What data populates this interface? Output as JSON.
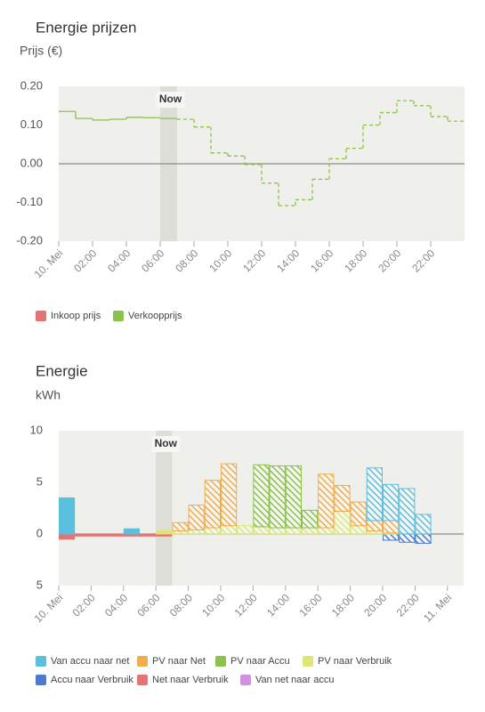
{
  "chart_data": [
    {
      "type": "step",
      "title": "Energie prijzen",
      "unit_label": "Prijs (€)",
      "x": [
        0,
        1,
        2,
        3,
        4,
        5,
        6,
        7,
        8,
        9,
        10,
        11,
        12,
        13,
        14,
        15,
        16,
        17,
        18,
        19,
        20,
        21,
        22,
        23
      ],
      "xlim": [
        0,
        24
      ],
      "xticks": [
        {
          "value": 0,
          "label": "10. Mei"
        },
        {
          "value": 2,
          "label": "02:00"
        },
        {
          "value": 4,
          "label": "04:00"
        },
        {
          "value": 6,
          "label": "06:00"
        },
        {
          "value": 8,
          "label": "08:00"
        },
        {
          "value": 10,
          "label": "10:00"
        },
        {
          "value": 12,
          "label": "12:00"
        },
        {
          "value": 14,
          "label": "14:00"
        },
        {
          "value": 16,
          "label": "16:00"
        },
        {
          "value": 18,
          "label": "18:00"
        },
        {
          "value": 20,
          "label": "20:00"
        },
        {
          "value": 22,
          "label": "22:00"
        }
      ],
      "ylim": [
        -0.2,
        0.2
      ],
      "yticks": [
        {
          "value": 0.2,
          "label": "0.20"
        },
        {
          "value": 0.1,
          "label": "0.10"
        },
        {
          "value": 0,
          "label": "0.00"
        },
        {
          "value": -0.1,
          "label": "-0.10"
        },
        {
          "value": -0.2,
          "label": "-0.20"
        }
      ],
      "now": {
        "label": "Now",
        "x": [
          6,
          7
        ]
      },
      "series": [
        {
          "name": "Inkoop prijs",
          "color": "#e57373",
          "values": [
            null,
            null,
            null,
            null,
            null,
            null,
            null,
            null,
            null,
            null,
            null,
            null,
            null,
            null,
            null,
            null,
            null,
            null,
            null,
            null,
            null,
            null,
            null,
            null
          ]
        },
        {
          "name": "Verkoopprijs",
          "color": "#8bc34a",
          "values": [
            0.135,
            0.117,
            0.113,
            0.115,
            0.12,
            0.119,
            0.117,
            0.115,
            0.095,
            0.028,
            0.02,
            -0.002,
            -0.05,
            -0.108,
            -0.093,
            -0.04,
            0.013,
            0.04,
            0.1,
            0.132,
            0.163,
            0.15,
            0.122,
            0.11
          ]
        }
      ]
    },
    {
      "type": "stacked-bar",
      "title": "Energie",
      "unit_label": "kWh",
      "x": [
        0,
        1,
        2,
        3,
        4,
        5,
        6,
        7,
        8,
        9,
        10,
        11,
        12,
        13,
        14,
        15,
        16,
        17,
        18,
        19,
        20,
        21,
        22,
        23
      ],
      "xlim": [
        0,
        25
      ],
      "xticks": [
        {
          "value": 0,
          "label": "10. Mei"
        },
        {
          "value": 2,
          "label": "02:00"
        },
        {
          "value": 4,
          "label": "04:00"
        },
        {
          "value": 6,
          "label": "06:00"
        },
        {
          "value": 8,
          "label": "08:00"
        },
        {
          "value": 10,
          "label": "10:00"
        },
        {
          "value": 12,
          "label": "12:00"
        },
        {
          "value": 14,
          "label": "14:00"
        },
        {
          "value": 16,
          "label": "16:00"
        },
        {
          "value": 18,
          "label": "18:00"
        },
        {
          "value": 20,
          "label": "20:00"
        },
        {
          "value": 22,
          "label": "22:00"
        },
        {
          "value": 24,
          "label": "11. Mei"
        }
      ],
      "ylim": [
        -5,
        10
      ],
      "yticks": [
        10,
        5,
        0,
        {
          "value": -5,
          "label": "5"
        }
      ],
      "now": {
        "label": "Now",
        "x": [
          6,
          7
        ]
      },
      "series": [
        {
          "name": "Van accu naar net",
          "color": "#5bc0de",
          "values": [
            3.5,
            0,
            0,
            0,
            0.5,
            0,
            0,
            0,
            0,
            0,
            0,
            0,
            0,
            0,
            0,
            0,
            0,
            0,
            0,
            5.1,
            3.5,
            4.4,
            1.9,
            0
          ]
        },
        {
          "name": "PV naar Net",
          "color": "#f0ad4e",
          "values": [
            0,
            0,
            0,
            0,
            0,
            0,
            0,
            0.8,
            2.4,
            4.6,
            6.0,
            0,
            0,
            0,
            0,
            0,
            5.2,
            2.5,
            2.3,
            1.0,
            1.2,
            0,
            0,
            0
          ]
        },
        {
          "name": "PV naar Accu",
          "color": "#8bc34a",
          "values": [
            0,
            0,
            0,
            0,
            0,
            0,
            0,
            0,
            0,
            0,
            0,
            0,
            6.0,
            6.0,
            6.0,
            1.7,
            0,
            0,
            0,
            0,
            0,
            0,
            0,
            0
          ]
        },
        {
          "name": "PV naar Verbruik",
          "color": "#dce775",
          "values": [
            0,
            0,
            0,
            0,
            0,
            0,
            0.3,
            0.3,
            0.4,
            0.6,
            0.8,
            0.8,
            0.7,
            0.6,
            0.6,
            0.6,
            0.6,
            2.2,
            0.8,
            0.3,
            0.1,
            0,
            0,
            0
          ]
        },
        {
          "name": "Accu naar Verbruik",
          "color": "#4a7bd0",
          "values": [
            0,
            0,
            0,
            0,
            0,
            0,
            0,
            0,
            0,
            0,
            0,
            0,
            0,
            0,
            0,
            0,
            0,
            0,
            0,
            0,
            -0.6,
            -0.8,
            -0.9,
            0
          ]
        },
        {
          "name": "Net naar Verbruik",
          "color": "#e57373",
          "values": [
            -0.5,
            -0.2,
            -0.2,
            -0.2,
            -0.2,
            -0.2,
            -0.2,
            0,
            0,
            0,
            0,
            0,
            0,
            0,
            0,
            0,
            0,
            0,
            0,
            0,
            0,
            0,
            0,
            0
          ]
        },
        {
          "name": "Van net naar accu",
          "color": "#d68fe6",
          "values": [
            0,
            0,
            0,
            0,
            0,
            0,
            0,
            0,
            0,
            0,
            0,
            0,
            0,
            0,
            0,
            0,
            0,
            0,
            0,
            0,
            0,
            0,
            0,
            0
          ]
        }
      ]
    }
  ]
}
